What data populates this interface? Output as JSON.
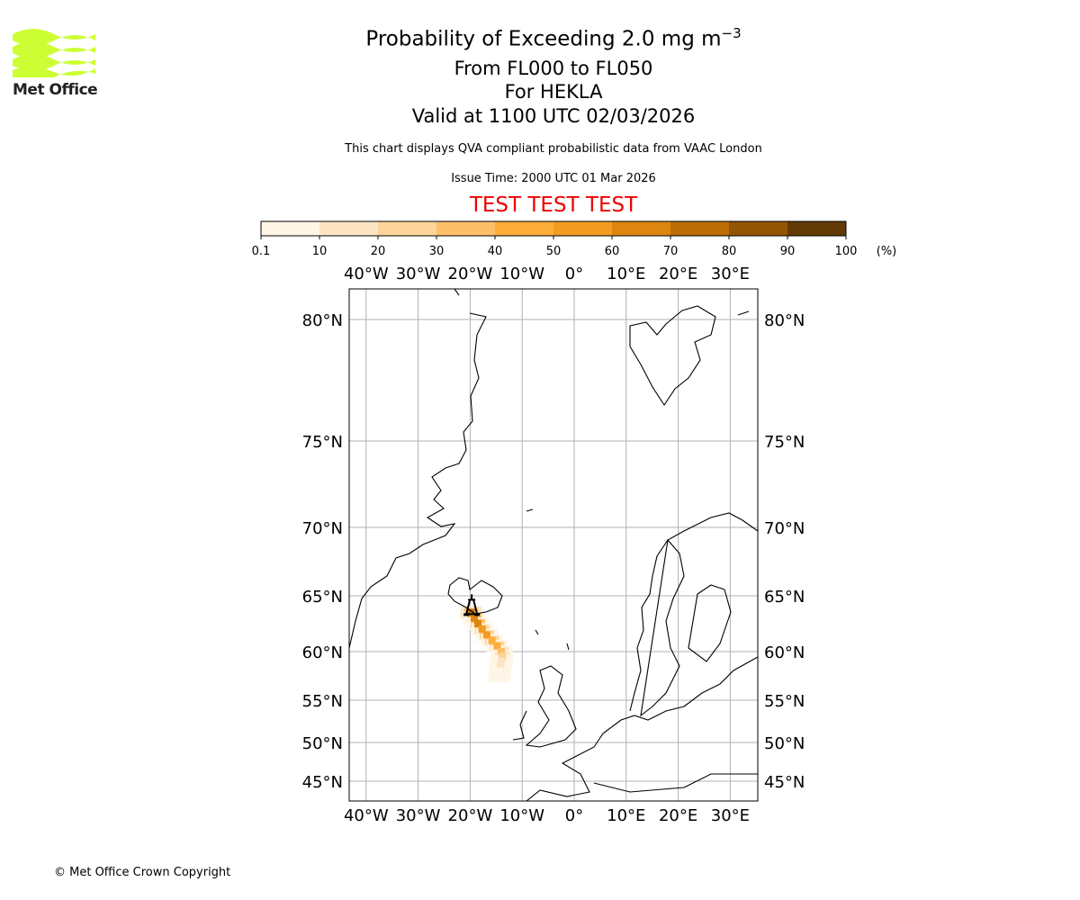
{
  "logo": {
    "text": "Met Office",
    "color": "#ccff33"
  },
  "title": {
    "main": "Probability of Exceeding 2.0 mg m",
    "exponent": "−3",
    "line2": "From FL000 to FL050",
    "line3": "For HEKLA",
    "line4": "Valid at 1100 UTC 02/03/2026"
  },
  "subtitle": "This chart displays QVA compliant probabilistic data from VAAC London",
  "issue_time": "Issue Time: 2000 UTC 01 Mar 2026",
  "test_banner": "TEST TEST TEST",
  "copyright": "© Met Office Crown Copyright",
  "chart_data": {
    "type": "heatmap",
    "title": "Probability of Exceeding 2.0 mg m-3",
    "colorbar": {
      "ticks": [
        "0.1",
        "10",
        "20",
        "30",
        "40",
        "50",
        "60",
        "70",
        "80",
        "90",
        "100"
      ],
      "unit": "(%)",
      "colors": [
        "#fff5e6",
        "#fde5c4",
        "#fdd49a",
        "#fdc06a",
        "#fdae3a",
        "#f39c21",
        "#dc8610",
        "#bb6c05",
        "#935404",
        "#623a06"
      ]
    },
    "lon_ticks": [
      {
        "v": -40,
        "label": "40°W"
      },
      {
        "v": -30,
        "label": "30°W"
      },
      {
        "v": -20,
        "label": "20°W"
      },
      {
        "v": -10,
        "label": "10°W"
      },
      {
        "v": 0,
        "label": "0°"
      },
      {
        "v": 10,
        "label": "10°E"
      },
      {
        "v": 20,
        "label": "20°E"
      },
      {
        "v": 30,
        "label": "30°E"
      }
    ],
    "lat_ticks": [
      {
        "v": 80,
        "label": "80°N"
      },
      {
        "v": 75,
        "label": "75°N"
      },
      {
        "v": 70,
        "label": "70°N"
      },
      {
        "v": 65,
        "label": "65°N"
      },
      {
        "v": 60,
        "label": "60°N"
      },
      {
        "v": 55,
        "label": "55°N"
      },
      {
        "v": 50,
        "label": "50°N"
      },
      {
        "v": 45,
        "label": "45°N"
      }
    ],
    "volcano": {
      "name": "HEKLA",
      "lon": -19.7,
      "lat": 64.0
    },
    "plume": [
      {
        "lon": -19.8,
        "lat": 63.5,
        "prob": 70
      },
      {
        "lon": -19.2,
        "lat": 63.0,
        "prob": 65
      },
      {
        "lon": -18.5,
        "lat": 62.5,
        "prob": 62
      },
      {
        "lon": -17.7,
        "lat": 62.0,
        "prob": 58
      },
      {
        "lon": -16.8,
        "lat": 61.5,
        "prob": 52
      },
      {
        "lon": -15.8,
        "lat": 61.0,
        "prob": 45
      },
      {
        "lon": -14.8,
        "lat": 60.5,
        "prob": 40
      },
      {
        "lon": -14.0,
        "lat": 60.0,
        "prob": 35
      },
      {
        "lon": -13.8,
        "lat": 59.5,
        "prob": 25
      },
      {
        "lon": -14.0,
        "lat": 59.0,
        "prob": 18
      },
      {
        "lon": -14.2,
        "lat": 58.5,
        "prob": 12
      },
      {
        "lon": -14.3,
        "lat": 58.0,
        "prob": 8
      },
      {
        "lon": -14.4,
        "lat": 57.5,
        "prob": 4
      }
    ]
  }
}
